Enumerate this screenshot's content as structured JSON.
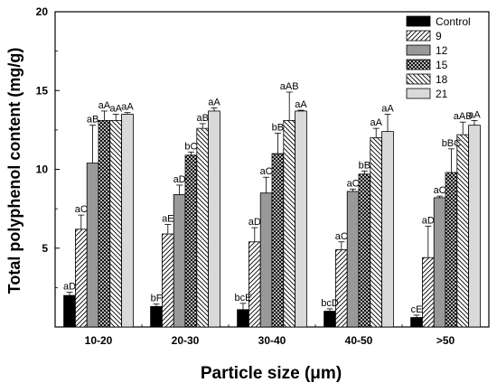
{
  "chart_data": {
    "type": "bar",
    "xlabel_prefix": "Particle size (",
    "xlabel_unit": "μm",
    "xlabel_suffix": ")",
    "ylabel": "Total polyphenol content (mg/g)",
    "ylim": [
      0,
      20
    ],
    "yticks": [
      "5",
      "10",
      "15",
      "20"
    ],
    "categories": [
      "10-20",
      "20-30",
      "30-40",
      "40-50",
      ">50"
    ],
    "legend_position": "top-right",
    "series": [
      {
        "name": "Control",
        "pattern": "solid-black",
        "values": [
          2.0,
          1.3,
          1.1,
          1.0,
          0.6
        ],
        "errors": [
          0.2,
          0.15,
          0.4,
          0.15,
          0.15
        ],
        "labels": [
          "aD",
          "bF",
          "bcE",
          "bcD",
          "cE"
        ]
      },
      {
        "name": "9",
        "pattern": "hatch-forward",
        "values": [
          6.2,
          5.9,
          5.4,
          4.9,
          4.4
        ],
        "errors": [
          0.9,
          0.6,
          0.9,
          0.5,
          2.0
        ],
        "labels": [
          "aC",
          "aE",
          "aD",
          "aC",
          "aD"
        ]
      },
      {
        "name": "12",
        "pattern": "solid-gray",
        "values": [
          10.4,
          8.4,
          8.5,
          8.6,
          8.2
        ],
        "errors": [
          2.4,
          0.6,
          1.0,
          0.15,
          0.1
        ],
        "labels": [
          "aB",
          "aD",
          "aC",
          "aC",
          "aC"
        ]
      },
      {
        "name": "15",
        "pattern": "crosshatch",
        "values": [
          13.1,
          10.9,
          11.0,
          9.7,
          9.8
        ],
        "errors": [
          0.6,
          0.2,
          1.3,
          0.2,
          1.5
        ],
        "labels": [
          "aA",
          "bC",
          "bB",
          "bB",
          "bBC"
        ]
      },
      {
        "name": "18",
        "pattern": "hatch-back",
        "values": [
          13.1,
          12.6,
          13.1,
          12.0,
          12.2
        ],
        "errors": [
          0.4,
          0.3,
          1.8,
          0.6,
          0.8
        ],
        "labels": [
          "aA",
          "aB",
          "aAB",
          "aA",
          "aAB"
        ]
      },
      {
        "name": "21",
        "pattern": "solid-lightgray",
        "values": [
          13.5,
          13.7,
          13.7,
          12.4,
          12.8
        ],
        "errors": [
          0.1,
          0.2,
          0.05,
          1.1,
          0.3
        ],
        "labels": [
          "aA",
          "aA",
          "aA",
          "aA",
          "aA"
        ]
      }
    ]
  }
}
